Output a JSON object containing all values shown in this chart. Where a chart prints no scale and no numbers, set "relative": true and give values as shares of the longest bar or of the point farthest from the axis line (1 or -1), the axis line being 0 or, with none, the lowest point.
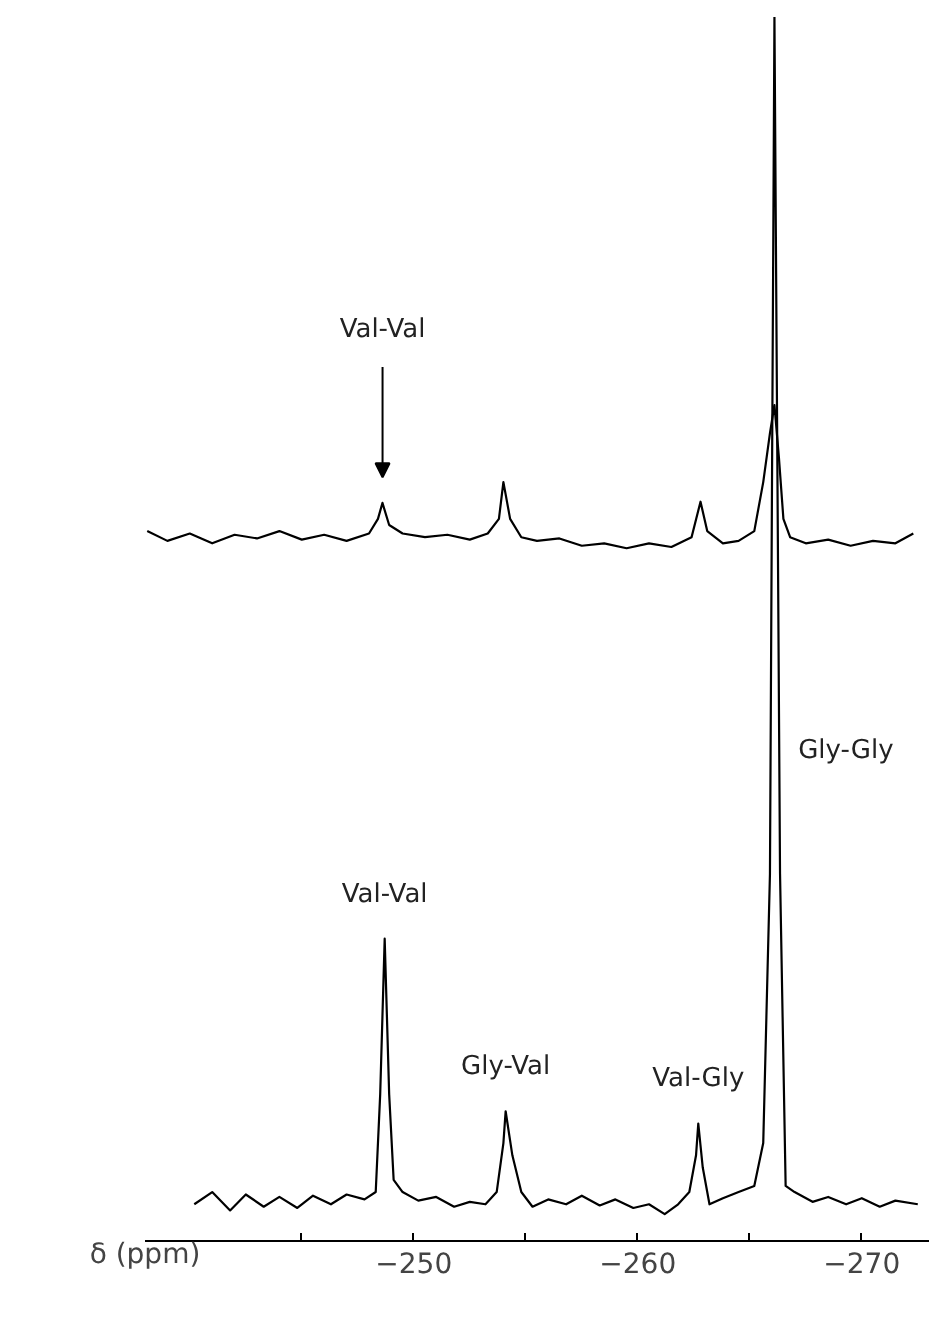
{
  "chart_data": {
    "type": "line",
    "relative": true,
    "xlabel": "δ (ppm)",
    "xlim": [
      -238,
      -273
    ],
    "xticks": [
      {
        "value": -245,
        "label": null
      },
      -250,
      {
        "value": -255,
        "label": null
      },
      -260,
      {
        "value": -265,
        "label": null
      },
      -270
    ],
    "tick_labels": "x",
    "grid": false,
    "series": [
      {
        "color": "#000000",
        "x": [
          -240.2,
          -241,
          -241.8,
          -242.5,
          -243.3,
          -244,
          -244.8,
          -245.5,
          -246.3,
          -247,
          -247.8,
          -248.3,
          -248.5,
          -248.7,
          -248.9,
          -249.1,
          -249.5,
          -250.2,
          -251,
          -251.8,
          -252.5,
          -253.2,
          -253.7,
          -254.0,
          -254.1,
          -254.4,
          -254.8,
          -255.3,
          -256,
          -256.8,
          -257.5,
          -258.3,
          -259,
          -259.8,
          -260.5,
          -261.2,
          -261.8,
          -262.3,
          -262.6,
          -262.7,
          -262.9,
          -263.2,
          -263.8,
          -264.5,
          -265.2,
          -265.6,
          -265.9,
          -266.1,
          -266.35,
          -266.6,
          -267,
          -267.8,
          -268.5,
          -269.3,
          -270,
          -270.8,
          -271.5,
          -272.5
        ],
        "values": [
          0.03,
          0.04,
          0.025,
          0.038,
          0.028,
          0.036,
          0.027,
          0.037,
          0.03,
          0.038,
          0.034,
          0.04,
          0.12,
          0.247,
          0.12,
          0.05,
          0.04,
          0.033,
          0.036,
          0.028,
          0.032,
          0.03,
          0.04,
          0.08,
          0.106,
          0.07,
          0.04,
          0.028,
          0.034,
          0.03,
          0.037,
          0.029,
          0.034,
          0.027,
          0.03,
          0.022,
          0.03,
          0.04,
          0.07,
          0.096,
          0.06,
          0.03,
          0.035,
          0.04,
          0.045,
          0.08,
          0.3,
          1.0,
          0.3,
          0.045,
          0.04,
          0.032,
          0.036,
          0.03,
          0.035,
          0.028,
          0.033,
          0.03
        ]
      },
      {
        "color": "#000000",
        "x": [
          -238.1,
          -239,
          -240,
          -241,
          -242,
          -243,
          -244,
          -245,
          -246,
          -247,
          -248,
          -248.4,
          -248.6,
          -248.9,
          -249.5,
          -250.5,
          -251.5,
          -252.5,
          -253.3,
          -253.8,
          -254.0,
          -254.3,
          -254.8,
          -255.5,
          -256.5,
          -257.5,
          -258.5,
          -259.5,
          -260.5,
          -261.5,
          -262.4,
          -262.8,
          -263.1,
          -263.8,
          -264.5,
          -265.2,
          -265.6,
          -265.9,
          -266.1,
          -266.3,
          -266.5,
          -266.8,
          -267.5,
          -268.5,
          -269.5,
          -270.5,
          -271.5,
          -272.3
        ],
        "values": [
          0.58,
          0.572,
          0.578,
          0.57,
          0.577,
          0.574,
          0.58,
          0.573,
          0.577,
          0.572,
          0.578,
          0.59,
          0.603,
          0.585,
          0.578,
          0.575,
          0.577,
          0.573,
          0.578,
          0.59,
          0.62,
          0.59,
          0.575,
          0.572,
          0.574,
          0.568,
          0.57,
          0.566,
          0.57,
          0.567,
          0.575,
          0.604,
          0.58,
          0.57,
          0.572,
          0.58,
          0.62,
          0.66,
          0.683,
          0.64,
          0.59,
          0.575,
          0.57,
          0.573,
          0.568,
          0.572,
          0.57,
          0.578
        ]
      }
    ],
    "annotations": [
      "Val-Val",
      {
        "text": "Val-Val",
        "x": -248.7,
        "y": 0.247
      },
      {
        "text": "Gly-Val",
        "x": -254.1,
        "y": 0.106
      },
      {
        "text": "Val-Gly",
        "x": -262.7,
        "y": 0.096
      },
      "Gly-Gly"
    ]
  }
}
